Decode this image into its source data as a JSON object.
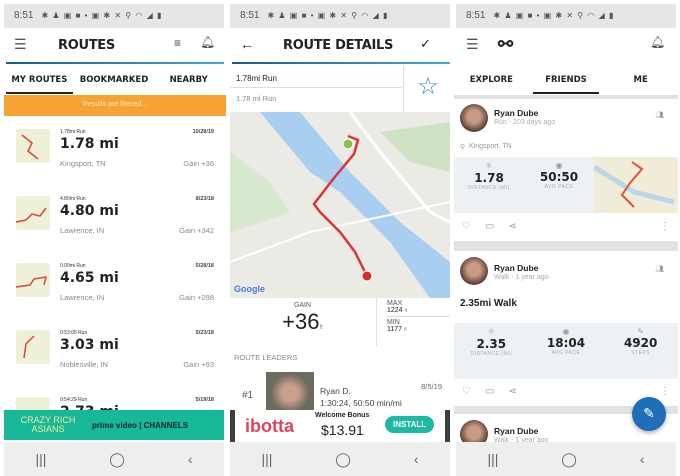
{
  "status": {
    "time": "8:51",
    "icons": "✱ ♟ ▣ ■ •    ▣ ✱ ✕ ⚲ ◠ ◢ ▮"
  },
  "routes": {
    "title": "ROUTES",
    "tabs": [
      "MY ROUTES",
      "BOOKMARKED",
      "NEARBY"
    ],
    "filter_banner": "Results are filtered...",
    "items": [
      {
        "label": "1.78mi Run",
        "date": "10/28/19",
        "distance": "1.78 mi",
        "location": "Kingsport, TN",
        "gain": "Gain +36"
      },
      {
        "label": "4.80mi Run",
        "date": "8/23/18",
        "distance": "4.80 mi",
        "location": "Lawrence, IN",
        "gain": "Gain +342"
      },
      {
        "label": "0.00mi Run",
        "date": "5/28/18",
        "distance": "4.65 mi",
        "location": "Lawrence, IN",
        "gain": "Gain +298"
      },
      {
        "label": "0:53:05 Run",
        "date": "5/23/18",
        "distance": "3.03 mi",
        "location": "Noblesville, IN",
        "gain": "Gain +93"
      },
      {
        "label": "0:54:29 Run",
        "date": "5/19/18",
        "distance": "2.73 mi",
        "location": "",
        "gain": ""
      }
    ],
    "ad": {
      "left": "CRAZY RICH ASIANS",
      "right": "prime video | CHANNELS"
    }
  },
  "details": {
    "title": "ROUTE DETAILS",
    "name": "1.78mi Run",
    "description": "1.78 mi Run",
    "map_credit": "Google",
    "gain_label": "GAIN",
    "gain_value": "+36",
    "gain_unit": "ft",
    "max_label": "MAX",
    "max_value": "1224",
    "min_label": "MIN",
    "min_value": "1177",
    "unit": "ft",
    "leaders_label": "ROUTE LEADERS",
    "leader": {
      "rank": "#1",
      "name": "Ryan D.",
      "stats": "1:30:24, 50:50 min/mi",
      "date": "8/5/19"
    },
    "ad": {
      "brand": "ibotta",
      "headline": "Welcome Bonus",
      "amount": "$13.91",
      "cta": "INSTALL"
    }
  },
  "feed": {
    "tabs": [
      "EXPLORE",
      "FRIENDS",
      "ME"
    ],
    "posts": [
      {
        "name": "Ryan Dube",
        "sub": "Run - 203 days ago",
        "location": "Kingsport, TN",
        "stats": [
          {
            "v": "1.78",
            "l": "DISTANCE (MI)"
          },
          {
            "v": "50:50",
            "l": "AVG PACE"
          }
        ]
      },
      {
        "name": "Ryan Dube",
        "sub": "Walk - 1 year ago",
        "title": "2.35mi Walk",
        "stats": [
          {
            "v": "2.35",
            "l": "DISTANCE (MI)"
          },
          {
            "v": "18:04",
            "l": "AVG PACE"
          },
          {
            "v": "4920",
            "l": "STEPS"
          }
        ]
      },
      {
        "name": "Ryan Dube",
        "sub": "Walk - 1 year ago"
      }
    ]
  },
  "colors": {
    "orange": "#f7a234",
    "accent": "#1e6fb8",
    "route": "#d9353a",
    "teal": "#1fb8a0"
  }
}
